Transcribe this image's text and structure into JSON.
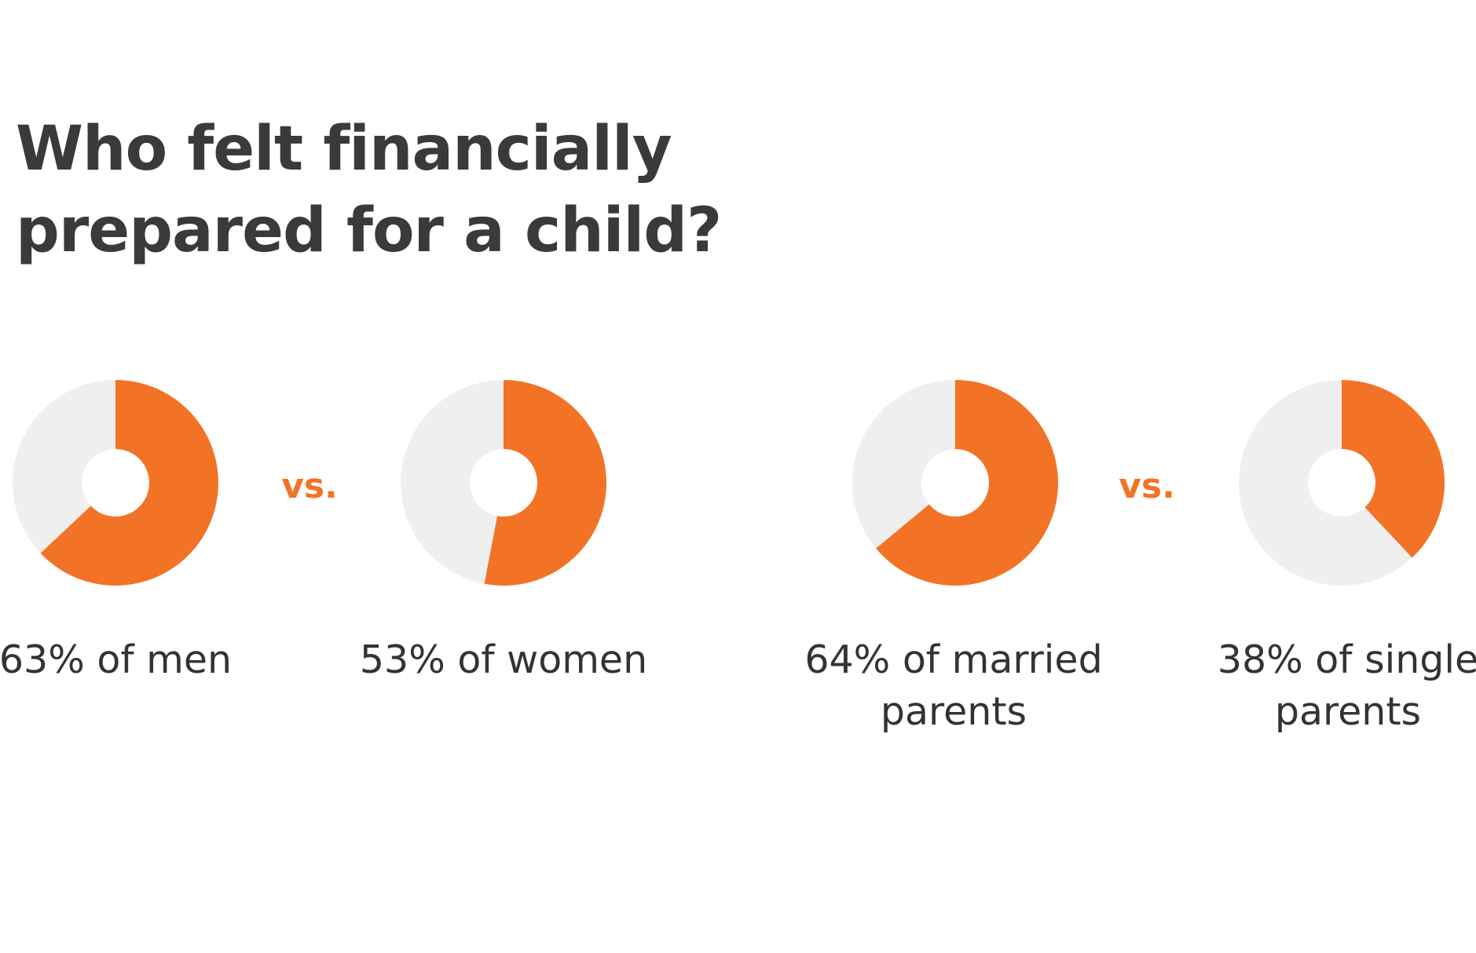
{
  "title": {
    "line1": "Who felt financially",
    "line2": "prepared for a child?"
  },
  "colors": {
    "accent": "#f37326",
    "remainder": "#efeff0",
    "text": "#333333"
  },
  "vs_label": "vs.",
  "chart_data": [
    {
      "type": "pie",
      "title": "Who felt financially prepared for a child?",
      "donut": true,
      "values": [
        63,
        37
      ],
      "categories": [
        "63% of men",
        ""
      ],
      "label_lines": [
        "63% of men"
      ]
    },
    {
      "type": "pie",
      "donut": true,
      "values": [
        53,
        47
      ],
      "categories": [
        "53% of women",
        ""
      ],
      "label_lines": [
        "53% of women"
      ]
    },
    {
      "type": "pie",
      "donut": true,
      "values": [
        64,
        36
      ],
      "categories": [
        "64% of married parents",
        ""
      ],
      "label_lines": [
        "64% of married",
        "parents"
      ]
    },
    {
      "type": "pie",
      "donut": true,
      "values": [
        38,
        62
      ],
      "categories": [
        "38% of single parents",
        ""
      ],
      "label_lines": [
        "38% of single",
        "parents"
      ]
    }
  ]
}
